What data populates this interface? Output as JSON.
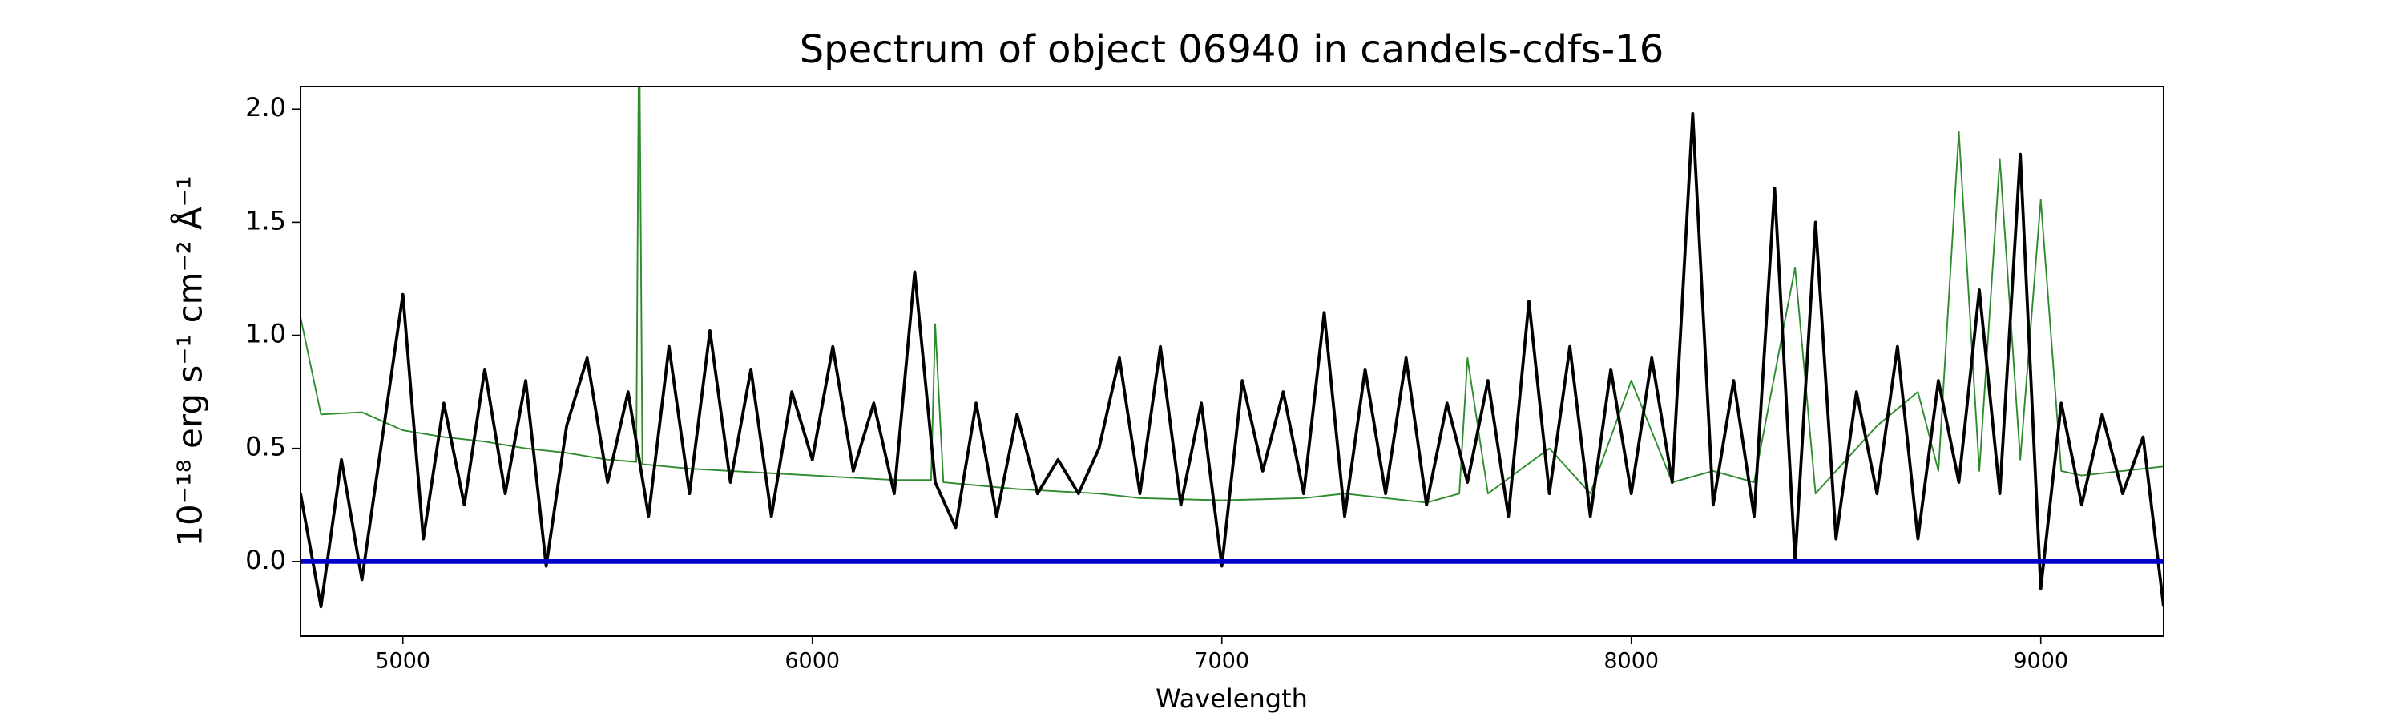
{
  "chart_data": {
    "type": "line",
    "title": "Spectrum of object 06940 in candels-cdfs-16",
    "xlabel": "Wavelength",
    "ylabel": "10⁻¹⁸ erg s⁻¹ cm⁻² Å⁻¹",
    "xlim": [
      4750,
      9300
    ],
    "ylim": [
      -0.33,
      2.1
    ],
    "xticks": [
      5000,
      6000,
      7000,
      8000,
      9000
    ],
    "yticks": [
      {
        "value": 0,
        "label": "0.0"
      },
      0.5,
      {
        "value": 1,
        "label": "1.0"
      },
      1.5,
      {
        "value": 2,
        "label": "2.0"
      }
    ],
    "series": [
      {
        "color": "#2e8b2e",
        "width": 1,
        "x": [
          4750,
          4800,
          4900,
          5000,
          5100,
          5200,
          5300,
          5400,
          5500,
          5570,
          5577,
          5585,
          5700,
          5800,
          5900,
          6000,
          6100,
          6200,
          6290,
          6300,
          6320,
          6500,
          6700,
          6800,
          7000,
          7200,
          7300,
          7500,
          7580,
          7600,
          7650,
          7800,
          7900,
          8000,
          8100,
          8200,
          8300,
          8400,
          8450,
          8600,
          8700,
          8750,
          8800,
          8850,
          8900,
          8950,
          9000,
          9050,
          9100,
          9200,
          9300
        ],
        "values": [
          1.08,
          0.65,
          0.66,
          0.58,
          0.55,
          0.53,
          0.5,
          0.48,
          0.45,
          0.44,
          2.5,
          0.43,
          0.41,
          0.4,
          0.39,
          0.38,
          0.37,
          0.36,
          0.36,
          1.05,
          0.35,
          0.32,
          0.3,
          0.28,
          0.27,
          0.28,
          0.3,
          0.26,
          0.3,
          0.9,
          0.3,
          0.5,
          0.3,
          0.8,
          0.35,
          0.4,
          0.35,
          1.3,
          0.3,
          0.6,
          0.75,
          0.4,
          1.9,
          0.4,
          1.78,
          0.45,
          1.6,
          0.4,
          0.38,
          0.4,
          0.42
        ]
      },
      {
        "color": "#000000",
        "width": 2,
        "x": [
          4750,
          4800,
          4850,
          4900,
          4950,
          5000,
          5050,
          5100,
          5150,
          5200,
          5250,
          5300,
          5350,
          5400,
          5450,
          5500,
          5550,
          5600,
          5650,
          5700,
          5750,
          5800,
          5850,
          5900,
          5950,
          6000,
          6050,
          6100,
          6150,
          6200,
          6250,
          6300,
          6350,
          6400,
          6450,
          6500,
          6550,
          6600,
          6650,
          6700,
          6750,
          6800,
          6850,
          6900,
          6950,
          7000,
          7050,
          7100,
          7150,
          7200,
          7250,
          7300,
          7350,
          7400,
          7450,
          7500,
          7550,
          7600,
          7650,
          7700,
          7750,
          7800,
          7850,
          7900,
          7950,
          8000,
          8050,
          8100,
          8150,
          8200,
          8250,
          8300,
          8350,
          8400,
          8450,
          8500,
          8550,
          8600,
          8650,
          8700,
          8750,
          8800,
          8850,
          8900,
          8950,
          9000,
          9050,
          9100,
          9150,
          9200,
          9250,
          9300
        ],
        "values": [
          0.3,
          -0.2,
          0.45,
          -0.08,
          0.55,
          1.18,
          0.1,
          0.7,
          0.25,
          0.85,
          0.3,
          0.8,
          -0.02,
          0.6,
          0.9,
          0.35,
          0.75,
          0.2,
          0.95,
          0.3,
          1.02,
          0.35,
          0.85,
          0.2,
          0.75,
          0.45,
          0.95,
          0.4,
          0.7,
          0.3,
          1.28,
          0.35,
          0.15,
          0.7,
          0.2,
          0.65,
          0.3,
          0.45,
          0.3,
          0.5,
          0.9,
          0.3,
          0.95,
          0.25,
          0.7,
          -0.02,
          0.8,
          0.4,
          0.75,
          0.3,
          1.1,
          0.2,
          0.85,
          0.3,
          0.9,
          0.25,
          0.7,
          0.35,
          0.8,
          0.2,
          1.15,
          0.3,
          0.95,
          0.2,
          0.85,
          0.3,
          0.9,
          0.35,
          1.98,
          0.25,
          0.8,
          0.2,
          1.65,
          0.0,
          1.5,
          0.1,
          0.75,
          0.3,
          0.95,
          0.1,
          0.8,
          0.35,
          1.2,
          0.3,
          1.8,
          -0.12,
          0.7,
          0.25,
          0.65,
          0.3,
          0.55,
          -0.2
        ]
      },
      {
        "color": "#0000cc",
        "width": 3,
        "x": [
          4750,
          9300
        ],
        "values": [
          0,
          0
        ]
      }
    ]
  }
}
